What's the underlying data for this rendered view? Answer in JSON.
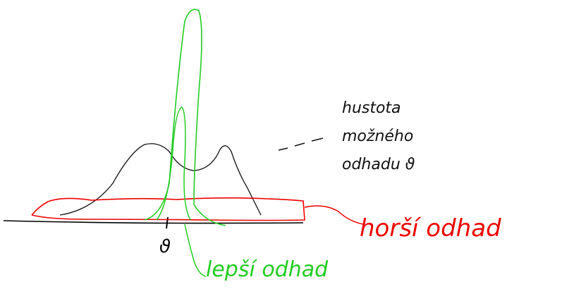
{
  "labels": {
    "density": [
      "hustota",
      "možného",
      "odhadu ϑ"
    ],
    "worse": "horší odhad",
    "better": "lepší odhad",
    "theta": "ϑ"
  }
}
